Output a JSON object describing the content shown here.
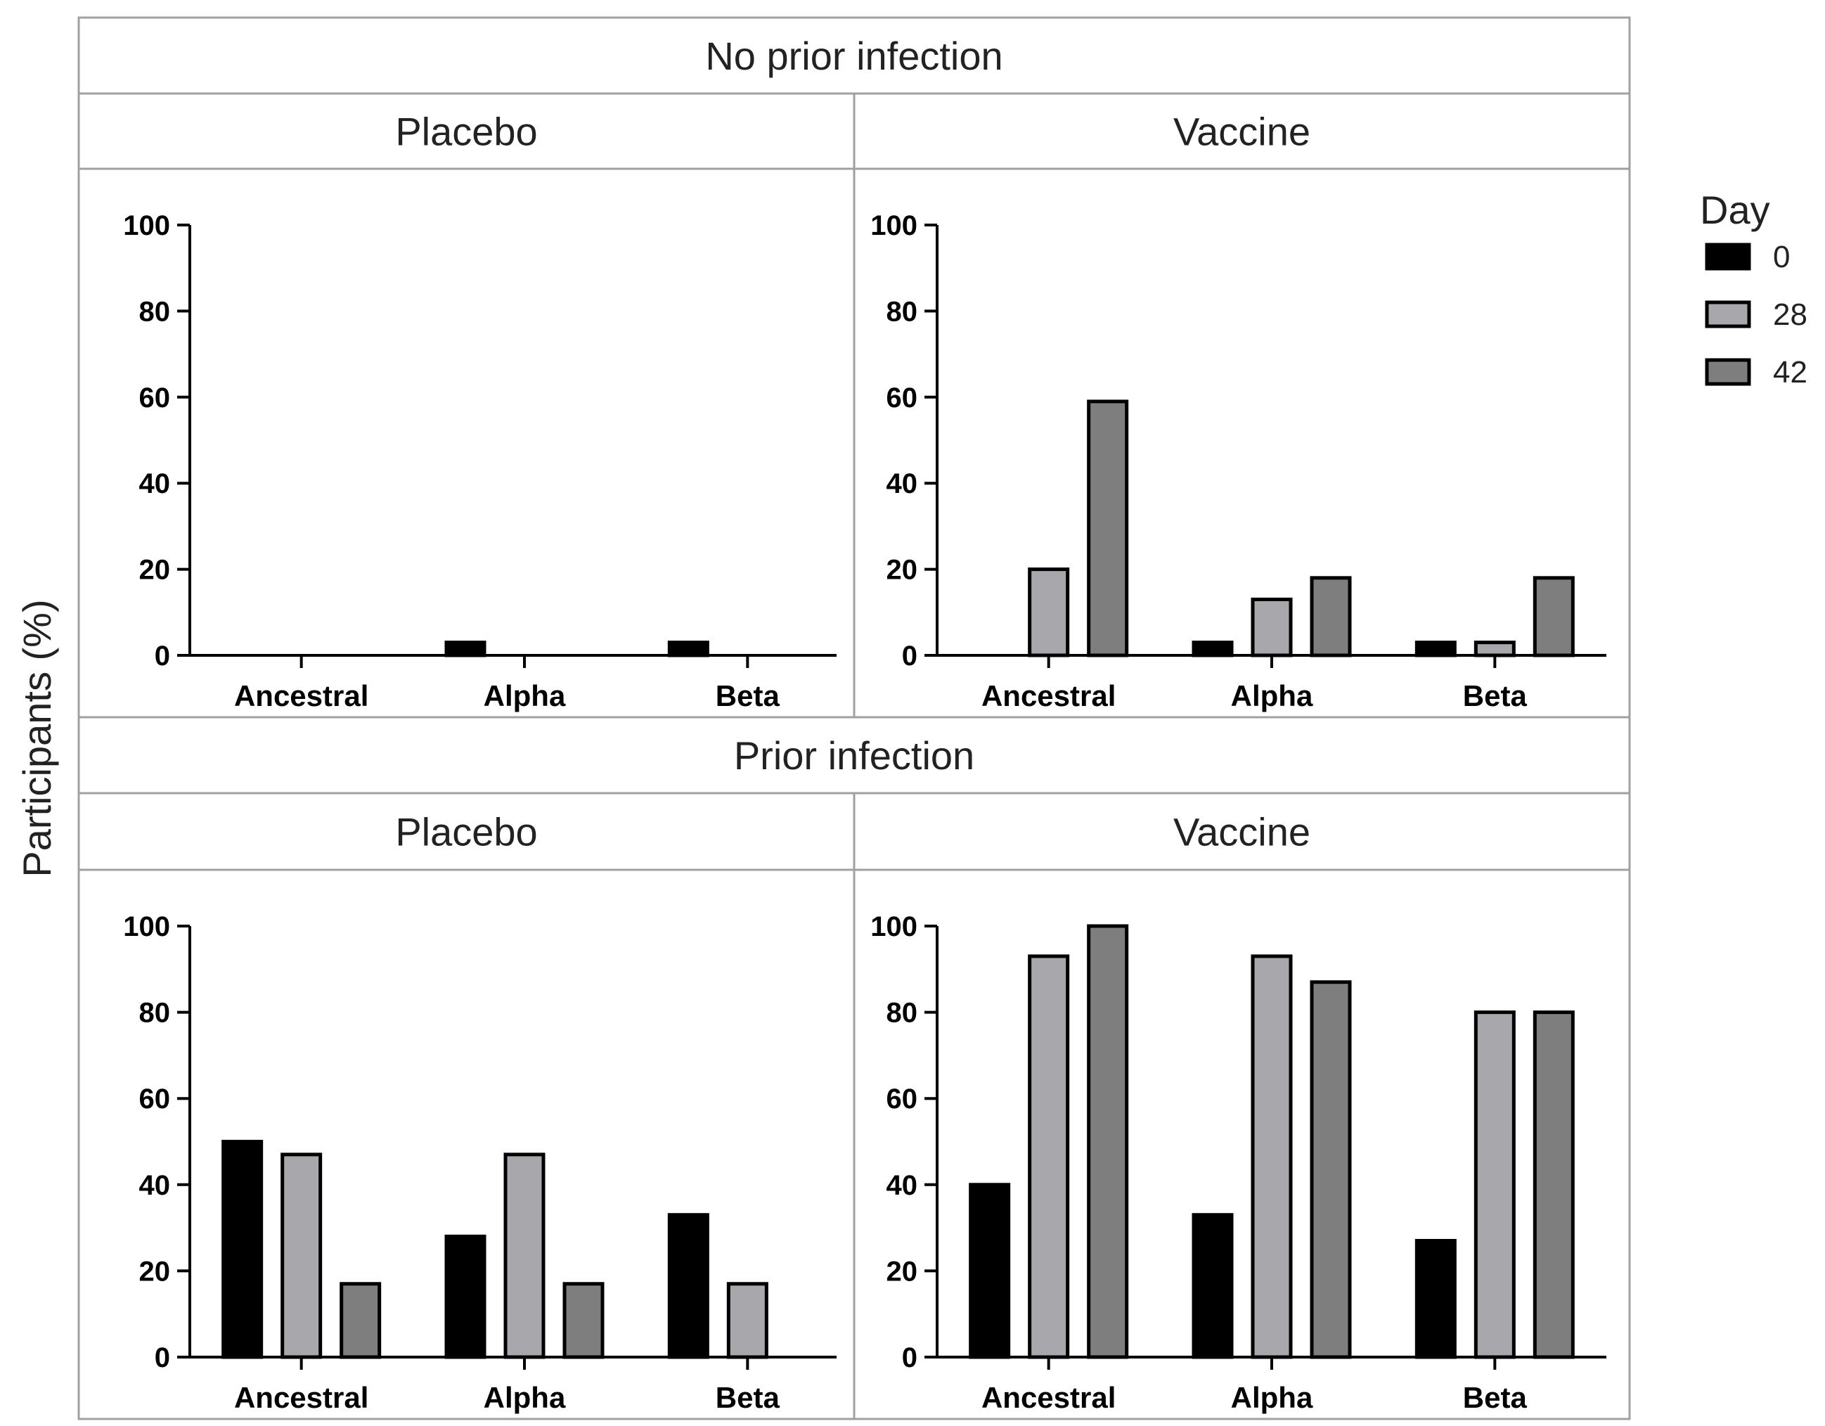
{
  "chart_data": {
    "type": "bar",
    "ylabel": "Participants (%)",
    "ylim": [
      0,
      100
    ],
    "yticks": [
      0,
      20,
      40,
      60,
      80,
      100
    ],
    "categories": [
      "Ancestral",
      "Alpha",
      "Beta"
    ],
    "legend": {
      "title": "Day",
      "placement": "right",
      "entries": [
        {
          "label": "0",
          "color": "#000000"
        },
        {
          "label": "28",
          "color": "#a7a7ac"
        },
        {
          "label": "42",
          "color": "#7e7e7e"
        }
      ]
    },
    "rows": [
      {
        "title": "No prior infection",
        "panels": [
          {
            "title": "Placebo",
            "series": [
              {
                "name": "0",
                "values": [
                  0,
                  3,
                  3
                ]
              },
              {
                "name": "28",
                "values": [
                  0,
                  0,
                  0
                ]
              },
              {
                "name": "42",
                "values": [
                  0,
                  0,
                  0
                ]
              }
            ]
          },
          {
            "title": "Vaccine",
            "series": [
              {
                "name": "0",
                "values": [
                  0,
                  3,
                  3
                ]
              },
              {
                "name": "28",
                "values": [
                  20,
                  13,
                  3
                ]
              },
              {
                "name": "42",
                "values": [
                  59,
                  18,
                  18
                ]
              }
            ]
          }
        ]
      },
      {
        "title": "Prior infection",
        "panels": [
          {
            "title": "Placebo",
            "series": [
              {
                "name": "0",
                "values": [
                  50,
                  28,
                  33
                ]
              },
              {
                "name": "28",
                "values": [
                  47,
                  47,
                  17
                ]
              },
              {
                "name": "42",
                "values": [
                  17,
                  17,
                  0
                ]
              }
            ]
          },
          {
            "title": "Vaccine",
            "series": [
              {
                "name": "0",
                "values": [
                  40,
                  33,
                  27
                ]
              },
              {
                "name": "28",
                "values": [
                  93,
                  93,
                  80
                ]
              },
              {
                "name": "42",
                "values": [
                  100,
                  87,
                  80
                ]
              }
            ]
          }
        ]
      }
    ]
  }
}
